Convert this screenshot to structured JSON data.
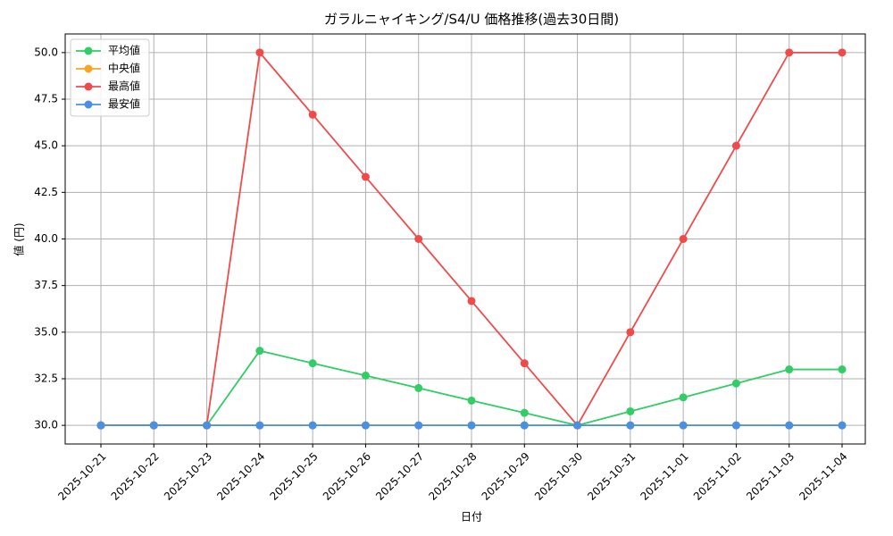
{
  "chart_data": {
    "type": "line",
    "title": "ガラルニャイキング/S4/U 価格推移(過去30日間)",
    "xlabel": "日付",
    "ylabel": "値 (円)",
    "categories": [
      "2025-10-21",
      "2025-10-22",
      "2025-10-23",
      "2025-10-24",
      "2025-10-25",
      "2025-10-26",
      "2025-10-27",
      "2025-10-28",
      "2025-10-29",
      "2025-10-30",
      "2025-10-31",
      "2025-11-01",
      "2025-11-02",
      "2025-11-03",
      "2025-11-04"
    ],
    "series": [
      {
        "name": "平均値",
        "color": "#33cc66",
        "values": [
          30,
          30,
          30,
          34,
          33.33,
          32.67,
          32,
          31.33,
          30.67,
          30,
          30.75,
          31.5,
          32.25,
          33,
          33
        ]
      },
      {
        "name": "中央値",
        "color": "#f5a623",
        "values": [
          30,
          30,
          30,
          30,
          30,
          30,
          30,
          30,
          30,
          30,
          30,
          30,
          30,
          30,
          30
        ]
      },
      {
        "name": "最高値",
        "color": "#f04b4b",
        "values": [
          30,
          30,
          30,
          50,
          46.67,
          43.33,
          40,
          36.67,
          33.33,
          30,
          35,
          40,
          45,
          50,
          50
        ]
      },
      {
        "name": "最安値",
        "color": "#4a90e2",
        "values": [
          30,
          30,
          30,
          30,
          30,
          30,
          30,
          30,
          30,
          30,
          30,
          30,
          30,
          30,
          30
        ]
      }
    ],
    "ylim": [
      29,
      51
    ],
    "yticks": [
      {
        "value": 30,
        "label": "30.0"
      },
      32.5,
      {
        "value": 35,
        "label": "35.0"
      },
      37.5,
      {
        "value": 40,
        "label": "40.0"
      },
      42.5,
      {
        "value": 45,
        "label": "45.0"
      },
      47.5,
      {
        "value": 50,
        "label": "50.0"
      }
    ],
    "grid": true,
    "legend": "upper-left"
  }
}
